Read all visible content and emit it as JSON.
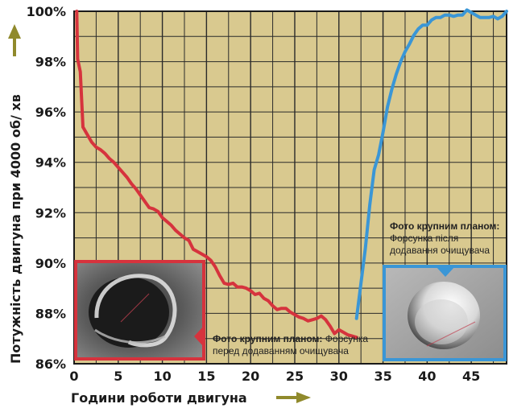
{
  "chart_data": {
    "type": "line",
    "ylabel": "Потужність двигуна при 4000 об/ хв",
    "xlabel": "Години роботи двигуна",
    "xlim": [
      0,
      49
    ],
    "ylim": [
      86,
      100
    ],
    "x_ticks": [
      0,
      5,
      10,
      15,
      20,
      25,
      30,
      35,
      40,
      45
    ],
    "y_ticks": [
      86,
      88,
      90,
      92,
      94,
      96,
      98,
      100
    ],
    "y_tick_labels": [
      "86%",
      "88%",
      "90%",
      "92%",
      "94%",
      "96%",
      "98%",
      "100%"
    ],
    "grid": true,
    "series": [
      {
        "color": "#d6333d",
        "x": [
          0.3,
          0.4,
          0.7,
          1.0,
          1.5,
          2.0,
          2.5,
          3.0,
          3.5,
          4.0,
          4.5,
          5.0,
          5.5,
          6.0,
          6.5,
          7.0,
          7.5,
          8.0,
          8.5,
          9.0,
          9.5,
          10.0,
          10.5,
          11.0,
          11.5,
          12.0,
          12.5,
          13.0,
          13.5,
          14.0,
          14.5,
          15.0,
          15.5,
          16.0,
          16.5,
          17.0,
          17.5,
          18.0,
          18.5,
          19.0,
          19.5,
          20.0,
          20.5,
          21.0,
          21.5,
          22.0,
          22.5,
          23.0,
          23.5,
          24.0,
          24.5,
          25.0,
          25.5,
          26.0,
          26.5,
          27.0,
          27.5,
          28.0,
          28.5,
          29.0,
          29.5,
          30.0,
          30.5,
          31.0,
          31.5,
          32.0
        ],
        "y": [
          100.0,
          98.1,
          97.6,
          95.4,
          95.1,
          94.8,
          94.6,
          94.5,
          94.35,
          94.15,
          94.0,
          93.8,
          93.6,
          93.4,
          93.15,
          92.95,
          92.7,
          92.45,
          92.2,
          92.15,
          92.05,
          91.8,
          91.65,
          91.5,
          91.3,
          91.15,
          91.0,
          90.9,
          90.55,
          90.45,
          90.35,
          90.25,
          90.1,
          89.85,
          89.5,
          89.2,
          89.15,
          89.2,
          89.05,
          89.05,
          89.0,
          88.9,
          88.75,
          88.8,
          88.6,
          88.5,
          88.3,
          88.15,
          88.2,
          88.2,
          88.05,
          87.95,
          87.85,
          87.8,
          87.7,
          87.75,
          87.8,
          87.9,
          87.75,
          87.5,
          87.2,
          87.35,
          87.25,
          87.15,
          87.1,
          87.05
        ]
      },
      {
        "color": "#3a96d6",
        "x": [
          32.0,
          32.5,
          33.0,
          33.5,
          34.0,
          34.5,
          35.0,
          35.5,
          36.0,
          36.5,
          37.0,
          37.5,
          38.0,
          38.5,
          39.0,
          39.5,
          40.0,
          40.5,
          41.0,
          41.5,
          42.0,
          42.5,
          43.0,
          43.5,
          44.0,
          44.5,
          45.0,
          45.5,
          46.0,
          46.5,
          47.0,
          47.5,
          48.0,
          48.5,
          49.0
        ],
        "y": [
          87.8,
          89.2,
          90.6,
          92.3,
          93.7,
          94.3,
          95.2,
          96.2,
          96.9,
          97.5,
          98.0,
          98.4,
          98.7,
          99.05,
          99.3,
          99.45,
          99.45,
          99.65,
          99.75,
          99.75,
          99.85,
          99.85,
          99.8,
          99.85,
          99.85,
          100.05,
          99.95,
          99.85,
          99.75,
          99.75,
          99.75,
          99.8,
          99.7,
          99.8,
          100.0
        ]
      }
    ],
    "annotations": [
      {
        "bold": "Фото крупним планом:",
        "text_lines": [
          "Форсунка",
          "перед додаванням очищувача"
        ]
      },
      {
        "bold": "Фото крупним планом:",
        "text_lines": [
          "Форсунка після",
          "додавання очищувача"
        ]
      }
    ]
  },
  "colors": {
    "plot_background": "#d9c98f",
    "grid": "#2a2a2a",
    "arrow": "#908a2c",
    "red_frame": "#d6333d",
    "blue_frame": "#3a96d6"
  }
}
